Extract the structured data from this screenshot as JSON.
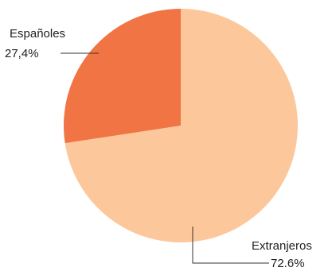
{
  "chart_data": {
    "type": "pie",
    "title": "",
    "start_angle_deg": 0,
    "direction": "counterclockwise",
    "slices": [
      {
        "label": "Extranjeros",
        "value_label": "72.6%",
        "value": 72.6,
        "color": "#FCC89B"
      },
      {
        "label": "Españoles",
        "value_label": "27,4%",
        "value": 27.4,
        "color": "#F07444"
      }
    ]
  }
}
